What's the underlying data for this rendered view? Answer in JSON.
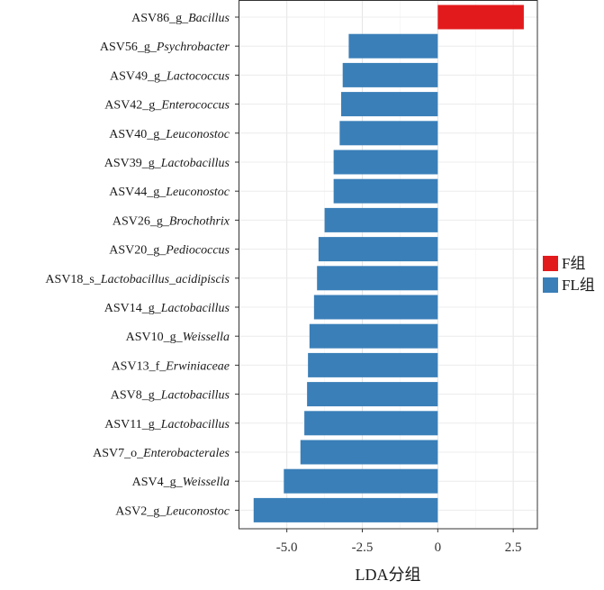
{
  "chart_data": {
    "type": "bar",
    "orientation": "horizontal",
    "title": "",
    "xlabel": "LDA分组",
    "ylabel": "",
    "xlim": [
      -6.6,
      3.3
    ],
    "xticks": [
      {
        "value": -5.0,
        "label": "-5.0"
      },
      {
        "value": -2.5,
        "label": "-2.5"
      },
      {
        "value": 0,
        "label": "0"
      },
      {
        "value": 2.5,
        "label": "2.5"
      }
    ],
    "grid": true,
    "legend_position": "right",
    "legend": [
      {
        "name": "F组",
        "color": "#E31A1C"
      },
      {
        "name": "FL组",
        "color": "#3A7FB8"
      }
    ],
    "bars": [
      {
        "prefix": "ASV86_g_",
        "taxon": "Bacillus",
        "value": 2.85,
        "group": "F组"
      },
      {
        "prefix": "ASV56_g_",
        "taxon": "Psychrobacter",
        "value": -2.95,
        "group": "FL组"
      },
      {
        "prefix": "ASV49_g_",
        "taxon": "Lactococcus",
        "value": -3.15,
        "group": "FL组"
      },
      {
        "prefix": "ASV42_g_",
        "taxon": "Enterococcus",
        "value": -3.2,
        "group": "FL组"
      },
      {
        "prefix": "ASV40_g_",
        "taxon": "Leuconostoc",
        "value": -3.25,
        "group": "FL组"
      },
      {
        "prefix": "ASV39_g_",
        "taxon": "Lactobacillus",
        "value": -3.45,
        "group": "FL组"
      },
      {
        "prefix": "ASV44_g_",
        "taxon": "Leuconostoc",
        "value": -3.45,
        "group": "FL组"
      },
      {
        "prefix": "ASV26_g_",
        "taxon": "Brochothrix",
        "value": -3.75,
        "group": "FL组"
      },
      {
        "prefix": "ASV20_g_",
        "taxon": "Pediococcus",
        "value": -3.95,
        "group": "FL组"
      },
      {
        "prefix": "ASV18_s_",
        "taxon": "Lactobacillus_acidipiscis",
        "value": -4.0,
        "group": "FL组"
      },
      {
        "prefix": "ASV14_g_",
        "taxon": "Lactobacillus",
        "value": -4.1,
        "group": "FL组"
      },
      {
        "prefix": "ASV10_g_",
        "taxon": "Weissella",
        "value": -4.25,
        "group": "FL组"
      },
      {
        "prefix": "ASV13_f_",
        "taxon": "Erwiniaceae",
        "value": -4.3,
        "group": "FL组"
      },
      {
        "prefix": "ASV8_g_",
        "taxon": "Lactobacillus",
        "value": -4.33,
        "group": "FL组"
      },
      {
        "prefix": "ASV11_g_",
        "taxon": "Lactobacillus",
        "value": -4.42,
        "group": "FL组"
      },
      {
        "prefix": "ASV7_o_",
        "taxon": "Enterobacterales",
        "value": -4.55,
        "group": "FL组"
      },
      {
        "prefix": "ASV4_g_",
        "taxon": "Weissella",
        "value": -5.1,
        "group": "FL组"
      },
      {
        "prefix": "ASV2_g_",
        "taxon": "Leuconostoc",
        "value": -6.1,
        "group": "FL组"
      }
    ]
  }
}
